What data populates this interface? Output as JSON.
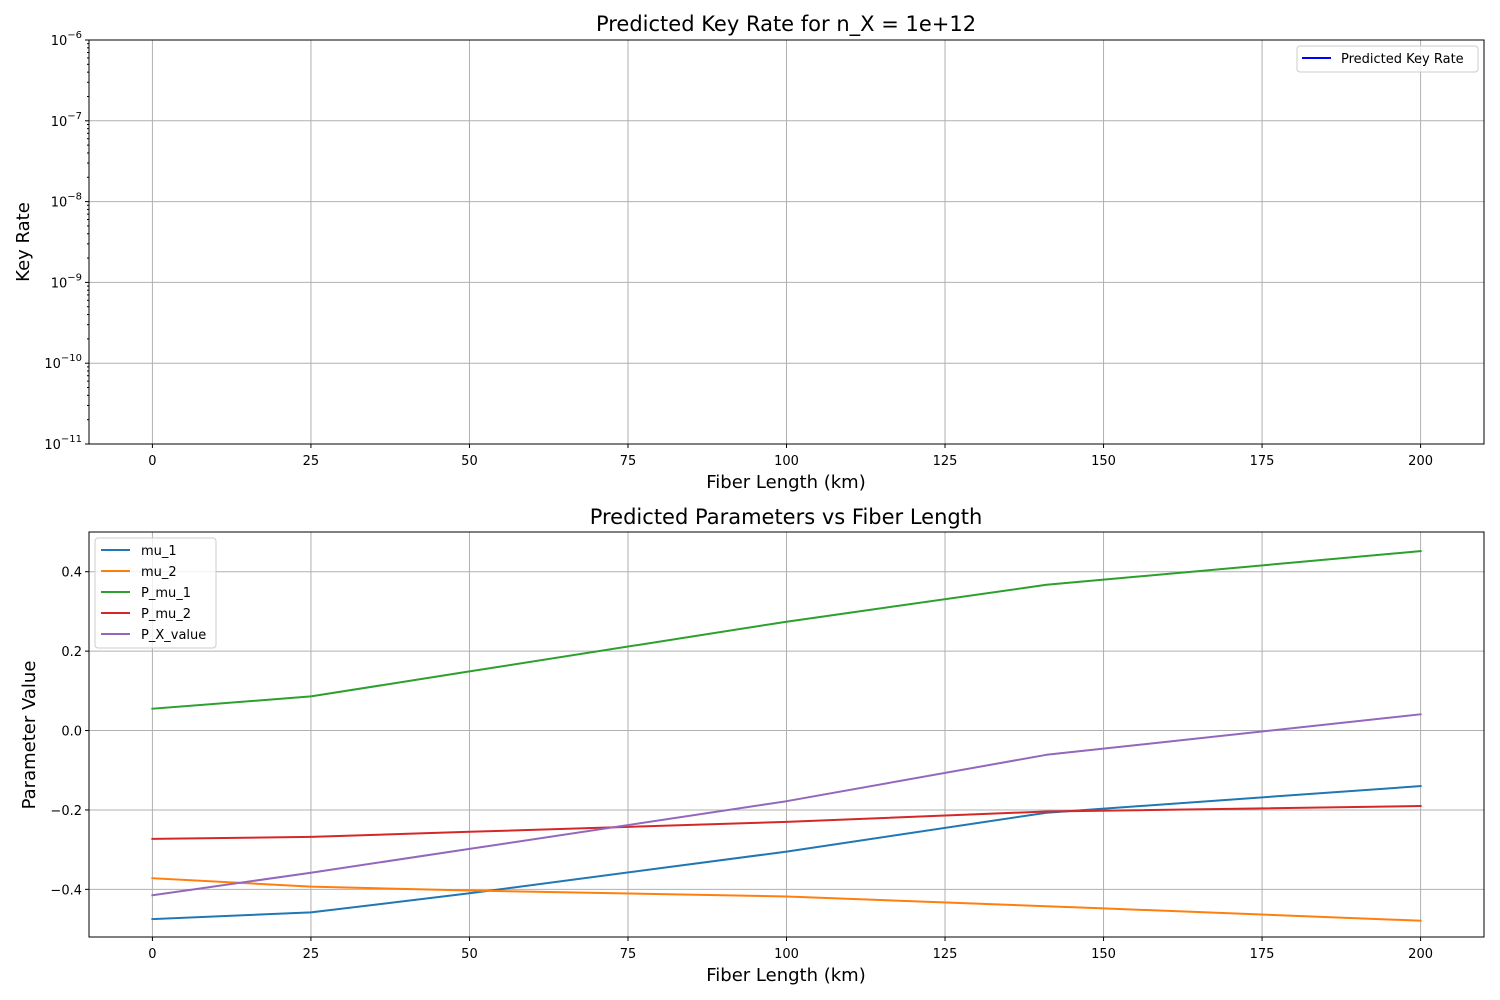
{
  "chart_data": [
    {
      "type": "line",
      "title": "Predicted Key Rate for n_X = 1e+12",
      "xlabel": "Fiber Length (km)",
      "ylabel": "Key Rate",
      "xlim": [
        -10,
        210
      ],
      "ylim": [
        1e-11,
        1e-06
      ],
      "yscale": "log",
      "xticks": [
        0,
        25,
        50,
        75,
        100,
        125,
        150,
        175,
        200
      ],
      "yticks": [
        {
          "base": "10",
          "exp": "−11",
          "value": 1e-11
        },
        {
          "base": "10",
          "exp": "−10",
          "value": 1e-10
        },
        {
          "base": "10",
          "exp": "−9",
          "value": 1e-09
        },
        {
          "base": "10",
          "exp": "−8",
          "value": 1e-08
        },
        {
          "base": "10",
          "exp": "−7",
          "value": 1e-07
        },
        {
          "base": "10",
          "exp": "−6",
          "value": 1e-06
        }
      ],
      "grid": true,
      "legend_position": "top-right",
      "series": [
        {
          "name": "Predicted Key Rate",
          "color": "#0000ff",
          "x": [],
          "y": []
        }
      ]
    },
    {
      "type": "line",
      "title": "Predicted Parameters vs Fiber Length",
      "xlabel": "Fiber Length (km)",
      "ylabel": "Parameter Value",
      "xlim": [
        -10,
        210
      ],
      "ylim": [
        -0.52,
        0.5
      ],
      "xticks": [
        0,
        25,
        50,
        75,
        100,
        125,
        150,
        175,
        200
      ],
      "yticks": [
        -0.4,
        -0.2,
        0.0,
        0.2,
        0.4
      ],
      "ytick_labels": [
        "−0.4",
        "−0.2",
        "0.0",
        "0.2",
        "0.4"
      ],
      "grid": true,
      "legend_position": "top-left",
      "series": [
        {
          "name": "mu_1",
          "color": "#1f77b4",
          "x": [
            0,
            25,
            50,
            100,
            141,
            200
          ],
          "y": [
            -0.475,
            -0.458,
            -0.41,
            -0.305,
            -0.207,
            -0.14
          ]
        },
        {
          "name": "mu_2",
          "color": "#ff7f0e",
          "x": [
            0,
            25,
            50,
            100,
            150,
            200
          ],
          "y": [
            -0.372,
            -0.393,
            -0.403,
            -0.418,
            -0.448,
            -0.479
          ]
        },
        {
          "name": "P_mu_1",
          "color": "#2ca02c",
          "x": [
            0,
            25,
            50,
            100,
            141,
            200
          ],
          "y": [
            0.055,
            0.086,
            0.149,
            0.274,
            0.367,
            0.452
          ]
        },
        {
          "name": "P_mu_2",
          "color": "#d62728",
          "x": [
            0,
            25,
            50,
            100,
            141,
            200
          ],
          "y": [
            -0.273,
            -0.268,
            -0.255,
            -0.23,
            -0.204,
            -0.19
          ]
        },
        {
          "name": "P_X_value",
          "color": "#9467bd",
          "x": [
            0,
            25,
            50,
            100,
            141,
            200
          ],
          "y": [
            -0.415,
            -0.358,
            -0.298,
            -0.178,
            -0.061,
            0.041
          ]
        }
      ]
    }
  ]
}
